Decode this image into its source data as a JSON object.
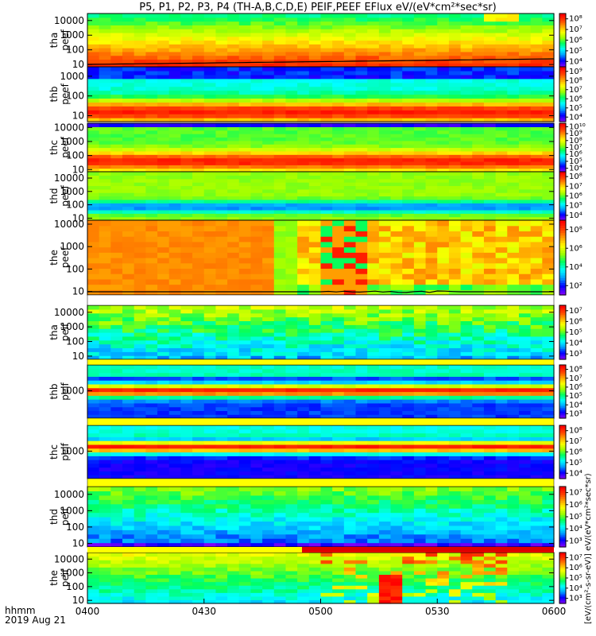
{
  "colors": {
    "background": "#ffffff",
    "axis": "#000000",
    "colorscale": [
      "#7f00ff",
      "#0000ff",
      "#00a0ff",
      "#00ffff",
      "#00ff60",
      "#a0ff00",
      "#ffff00",
      "#ffa000",
      "#ff4000",
      "#ff0000"
    ],
    "gap_white": "#ffffff",
    "gap_yellow": "#ffff00",
    "bar_red": "#e00000"
  },
  "chart_data": {
    "type": "heatmap",
    "title": "P5, P1, P2, P3, P4 (TH-A,B,C,D,E) PEIF,PEEF EFlux eV/(eV*cm²*sec*sr)",
    "x_ticks": [
      "0400",
      "0430",
      "0500",
      "0530",
      "0600"
    ],
    "x_corner_labels": [
      "hhmm",
      "2019 Aug 21"
    ],
    "x_range_minutes": [
      0,
      120
    ],
    "colorbar_vertical_label": "[eV/(cm²-s-sr-eV)] eV/(eV*cm²*sec*sr)",
    "panels": [
      {
        "probe": "tha",
        "species": "peef",
        "label": [
          "tha",
          "peef"
        ],
        "yscale": "log",
        "ytick_labels": [
          "10",
          "100",
          "1000",
          "10000"
        ],
        "ytick_values": [
          10,
          100,
          1000,
          10000
        ],
        "yrange": [
          7,
          30000
        ],
        "cb_ticks": [
          "10⁴",
          "10⁵",
          "10⁶",
          "10⁷",
          "10⁸"
        ],
        "cb_range": [
          4,
          8.5
        ],
        "dominant_profile": "low-energy orange/red, mid yellow-green, high green"
      },
      {
        "probe": "thb",
        "species": "peef",
        "label": [
          "thb",
          "peef"
        ],
        "yscale": "log",
        "ytick_labels": [
          "10",
          "100",
          "1000"
        ],
        "ytick_values": [
          10,
          100,
          1000
        ],
        "yrange": [
          5,
          3000
        ],
        "cb_ticks": [
          "10⁴",
          "10⁵",
          "10⁶",
          "10⁷",
          "10⁸",
          "10⁹"
        ],
        "cb_range": [
          3.5,
          9.5
        ],
        "dominant_profile": "red core at low energy, yellow bands, blue/purple top"
      },
      {
        "probe": "thc",
        "species": "peef",
        "label": [
          "thc",
          "peef"
        ],
        "yscale": "log",
        "ytick_labels": [
          "10",
          "100",
          "1000",
          "10000"
        ],
        "ytick_values": [
          10,
          100,
          1000,
          10000
        ],
        "yrange": [
          7,
          20000
        ],
        "cb_ticks": [
          "10⁴",
          "10⁵",
          "10⁶",
          "10⁷",
          "10⁸",
          "10⁹",
          "10¹⁰"
        ],
        "cb_range": [
          3.5,
          10.5
        ],
        "dominant_profile": "red low-energy band, yellow-green mid, purple top"
      },
      {
        "probe": "thd",
        "species": "peef",
        "label": [
          "thd",
          "peef"
        ],
        "yscale": "log",
        "ytick_labels": [
          "10",
          "100",
          "1000",
          "10000"
        ],
        "ytick_values": [
          10,
          100,
          1000,
          10000
        ],
        "yrange": [
          7,
          30000
        ],
        "cb_ticks": [
          "10⁴",
          "10⁵",
          "10⁶",
          "10⁷",
          "10⁸"
        ],
        "cb_range": [
          3.5,
          8.5
        ],
        "dominant_profile": "green/yellow with blue mid band"
      },
      {
        "probe": "the",
        "species": "peef",
        "label": [
          "the",
          "peef"
        ],
        "yscale": "log",
        "ytick_labels": [
          "10",
          "100",
          "1000",
          "10000"
        ],
        "ytick_values": [
          10,
          100,
          1000,
          10000
        ],
        "yrange": [
          7,
          15000
        ],
        "cb_ticks": [
          "10²",
          "10⁴",
          "10⁶",
          "10⁸"
        ],
        "cb_range": [
          1.5,
          9
        ],
        "dominant_profile": "orange uniform until ~0445, then bursty red/green structure"
      },
      {
        "probe": "tha",
        "species": "peif",
        "label": [
          "tha",
          "peif"
        ],
        "yscale": "log",
        "ytick_labels": [
          "10",
          "100",
          "1000",
          "10000"
        ],
        "ytick_values": [
          10,
          100,
          1000,
          10000
        ],
        "yrange": [
          6,
          30000
        ],
        "cb_ticks": [
          "10³",
          "10⁴",
          "10⁵",
          "10⁶",
          "10⁷"
        ],
        "cb_range": [
          2.5,
          7.5
        ],
        "dominant_profile": "green/cyan top, blue/cyan patchy below"
      },
      {
        "probe": "thb",
        "species": "peif",
        "label": [
          "thb",
          "peif"
        ],
        "yscale": "log",
        "ytick_labels": [
          "1000"
        ],
        "ytick_values": [
          1000
        ],
        "yrange": [
          150,
          6000
        ],
        "cb_ticks": [
          "10³",
          "10⁴",
          "10⁵",
          "10⁶",
          "10⁷",
          "10⁸"
        ],
        "cb_range": [
          2.5,
          8.5
        ],
        "dominant_profile": "red band near 1000 eV, cyan above, blue below"
      },
      {
        "probe": "thc",
        "species": "peif",
        "label": [
          "thc",
          "peif"
        ],
        "yscale": "log",
        "ytick_labels": [
          "1000"
        ],
        "ytick_values": [
          1000
        ],
        "yrange": [
          150,
          6000
        ],
        "cb_ticks": [
          "10⁴",
          "10⁵",
          "10⁶",
          "10⁷",
          "10⁸"
        ],
        "cb_range": [
          3.5,
          8.5
        ],
        "dominant_profile": "red band near 1000 eV, cyan above, blue/purple below"
      },
      {
        "probe": "thd",
        "species": "peif",
        "label": [
          "thd",
          "peif"
        ],
        "yscale": "log",
        "ytick_labels": [
          "10",
          "100",
          "1000",
          "10000"
        ],
        "ytick_values": [
          10,
          100,
          1000,
          10000
        ],
        "yrange": [
          6,
          30000
        ],
        "cb_ticks": [
          "10³",
          "10⁴",
          "10⁵",
          "10⁶",
          "10⁷"
        ],
        "cb_range": [
          2.5,
          7.5
        ],
        "dominant_profile": "green top, blue/cyan mid, purple low"
      },
      {
        "probe": "the",
        "species": "peif",
        "label": [
          "the",
          "peif"
        ],
        "yscale": "log",
        "ytick_labels": [
          "10",
          "100",
          "1000",
          "10000"
        ],
        "ytick_values": [
          10,
          100,
          1000,
          10000
        ],
        "yrange": [
          6,
          30000
        ],
        "cb_ticks": [
          "10³",
          "10⁴",
          "10⁵",
          "10⁶",
          "10⁷"
        ],
        "cb_range": [
          2.5,
          7.5
        ],
        "dominant_profile": "cyan/green, bursty after ~0500 with red spike near 0518"
      }
    ]
  }
}
